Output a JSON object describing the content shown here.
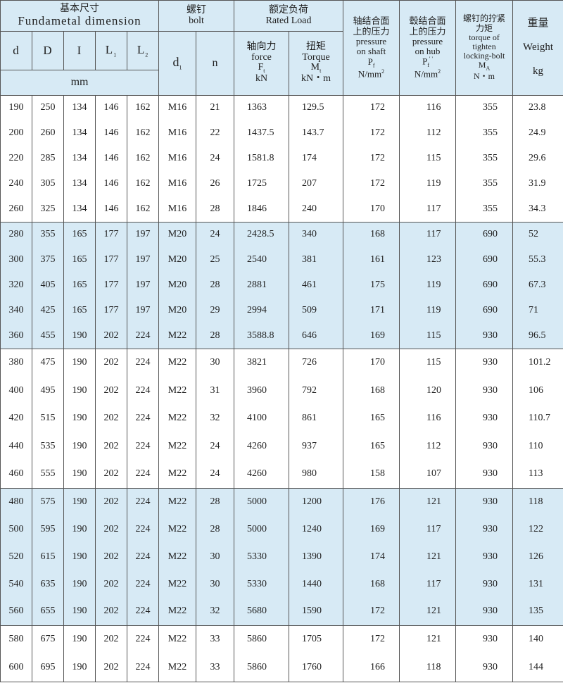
{
  "header": {
    "fundamental_cn": "基本尺寸",
    "fundamental_en": "Fundametal dimension",
    "bolt_cn": "螺钉",
    "bolt_en": "bolt",
    "rated_cn": "额定负荷",
    "rated_en": "Rated Load",
    "cols": {
      "d": "d",
      "D": "D",
      "I": "I",
      "L1": "L",
      "L1_sub": "1",
      "L2": "L",
      "L2_sub": "2",
      "mm": "mm",
      "d1": "d",
      "d1_sub": "1",
      "n": "n",
      "force_cn": "轴向力",
      "force_en": "force",
      "force_sym": "F",
      "force_sub": "t",
      "force_unit": "kN",
      "torque_cn": "扭矩",
      "torque_en": "Torque",
      "torque_sym": "M",
      "torque_sub": "t",
      "torque_unit": "kN・m",
      "shaft_cn1": "轴结合面",
      "shaft_cn2": "上的压力",
      "shaft_en1": "pressure",
      "shaft_en2": "on shaft",
      "shaft_sym": "P",
      "shaft_sub": "f",
      "shaft_unit": "N/mm",
      "shaft_sup": "2",
      "hub_cn1": "毂结合面",
      "hub_cn2": "上的压力",
      "hub_en1": "pressure",
      "hub_en2": "on hub",
      "hub_sym": "P",
      "hub_sub": "f",
      "hub_mark": "'   '",
      "hub_unit": "N/mm",
      "hub_sup": "2",
      "tight_cn1": "螺钉的拧紧",
      "tight_cn2": "力矩",
      "tight_en1": "torque of",
      "tight_en2": "tighten",
      "tight_en3": "locking-bolt",
      "tight_sym": "M",
      "tight_sub": "A",
      "tight_unit": "N・m",
      "weight_cn": "重量",
      "weight_en": "Weight",
      "weight_unit": "kg"
    }
  },
  "row_groups_shading": [
    "#ffffff",
    "#d7eaf5",
    "#ffffff",
    "#d7eaf5",
    "#ffffff"
  ],
  "rows": [
    [
      "190",
      "250",
      "134",
      "146",
      "162",
      "M16",
      "21",
      "1363",
      "129.5",
      "172",
      "116",
      "355",
      "23.8"
    ],
    [
      "200",
      "260",
      "134",
      "146",
      "162",
      "M16",
      "22",
      "1437.5",
      "143.7",
      "172",
      "112",
      "355",
      "24.9"
    ],
    [
      "220",
      "285",
      "134",
      "146",
      "162",
      "M16",
      "24",
      "1581.8",
      "174",
      "172",
      "115",
      "355",
      "29.6"
    ],
    [
      "240",
      "305",
      "134",
      "146",
      "162",
      "M16",
      "26",
      "1725",
      "207",
      "172",
      "119",
      "355",
      "31.9"
    ],
    [
      "260",
      "325",
      "134",
      "146",
      "162",
      "M16",
      "28",
      "1846",
      "240",
      "170",
      "117",
      "355",
      "34.3"
    ],
    [
      "280",
      "355",
      "165",
      "177",
      "197",
      "M20",
      "24",
      "2428.5",
      "340",
      "168",
      "117",
      "690",
      "52"
    ],
    [
      "300",
      "375",
      "165",
      "177",
      "197",
      "M20",
      "25",
      "2540",
      "381",
      "161",
      "123",
      "690",
      "55.3"
    ],
    [
      "320",
      "405",
      "165",
      "177",
      "197",
      "M20",
      "28",
      "2881",
      "461",
      "175",
      "119",
      "690",
      "67.3"
    ],
    [
      "340",
      "425",
      "165",
      "177",
      "197",
      "M20",
      "29",
      "2994",
      "509",
      "171",
      "119",
      "690",
      "71"
    ],
    [
      "360",
      "455",
      "190",
      "202",
      "224",
      "M22",
      "28",
      "3588.8",
      "646",
      "169",
      "115",
      "930",
      "96.5"
    ],
    [
      "380",
      "475",
      "190",
      "202",
      "224",
      "M22",
      "30",
      "3821",
      "726",
      "170",
      "115",
      "930",
      "101.2"
    ],
    [
      "400",
      "495",
      "190",
      "202",
      "224",
      "M22",
      "31",
      "3960",
      "792",
      "168",
      "120",
      "930",
      "106"
    ],
    [
      "420",
      "515",
      "190",
      "202",
      "224",
      "M22",
      "32",
      "4100",
      "861",
      "165",
      "116",
      "930",
      "110.7"
    ],
    [
      "440",
      "535",
      "190",
      "202",
      "224",
      "M22",
      "24",
      "4260",
      "937",
      "165",
      "112",
      "930",
      "110"
    ],
    [
      "460",
      "555",
      "190",
      "202",
      "224",
      "M22",
      "24",
      "4260",
      "980",
      "158",
      "107",
      "930",
      "113"
    ],
    [
      "480",
      "575",
      "190",
      "202",
      "224",
      "M22",
      "28",
      "5000",
      "1200",
      "176",
      "121",
      "930",
      "118"
    ],
    [
      "500",
      "595",
      "190",
      "202",
      "224",
      "M22",
      "28",
      "5000",
      "1240",
      "169",
      "117",
      "930",
      "122"
    ],
    [
      "520",
      "615",
      "190",
      "202",
      "224",
      "M22",
      "30",
      "5330",
      "1390",
      "174",
      "121",
      "930",
      "126"
    ],
    [
      "540",
      "635",
      "190",
      "202",
      "224",
      "M22",
      "30",
      "5330",
      "1440",
      "168",
      "117",
      "930",
      "131"
    ],
    [
      "560",
      "655",
      "190",
      "202",
      "224",
      "M22",
      "32",
      "5680",
      "1590",
      "172",
      "121",
      "930",
      "135"
    ],
    [
      "580",
      "675",
      "190",
      "202",
      "224",
      "M22",
      "33",
      "5860",
      "1705",
      "172",
      "121",
      "930",
      "140"
    ],
    [
      "600",
      "695",
      "190",
      "202",
      "224",
      "M22",
      "33",
      "5860",
      "1760",
      "166",
      "118",
      "930",
      "144"
    ]
  ]
}
